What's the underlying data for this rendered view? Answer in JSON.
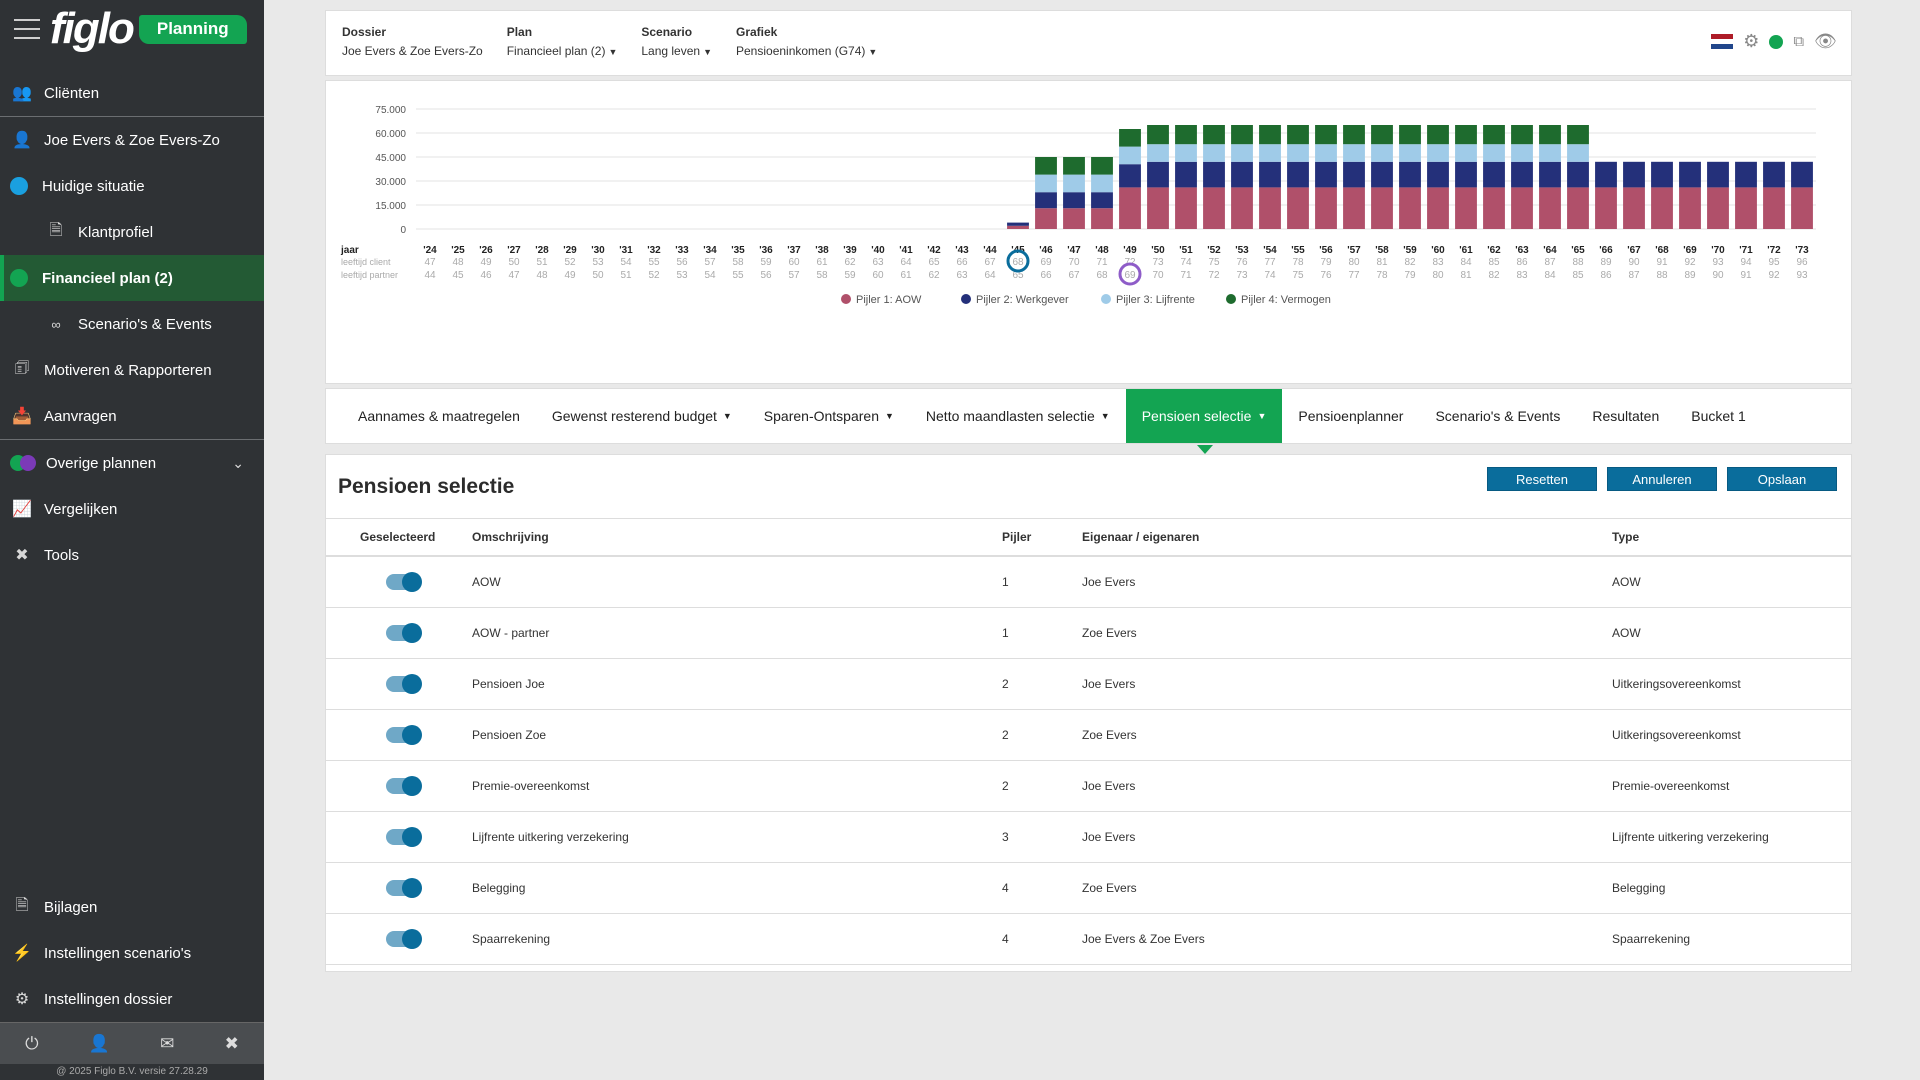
{
  "app": {
    "logo_text": "figlo",
    "badge": "Planning"
  },
  "sidebar": {
    "items": [
      {
        "label": "Cliënten",
        "icon": "users-icon"
      },
      {
        "label": "Joe Evers & Zoe Evers-Zo",
        "icon": "user-icon"
      },
      {
        "label": "Huidige situatie",
        "icon": "blue-dot"
      },
      {
        "label": "Klantprofiel",
        "icon": "document-icon"
      },
      {
        "label": "Financieel plan (2)",
        "icon": "green-dot"
      },
      {
        "label": "Scenario's & Events",
        "icon": "glasses-icon"
      },
      {
        "label": "Motiveren & Rapporteren",
        "icon": "report-icon"
      },
      {
        "label": "Aanvragen",
        "icon": "inbox-icon"
      },
      {
        "label": "Overige plannen",
        "icon": "multi-dot"
      },
      {
        "label": "Vergelijken",
        "icon": "chart-icon"
      },
      {
        "label": "Tools",
        "icon": "tools-icon"
      }
    ],
    "bottom_items": [
      {
        "label": "Bijlagen",
        "icon": "attachment-icon"
      },
      {
        "label": "Instellingen scenario's",
        "icon": "lightning-icon"
      },
      {
        "label": "Instellingen dossier",
        "icon": "gear-icon"
      }
    ],
    "copyright": "@ 2025 Figlo B.V. versie 27.28.29"
  },
  "header": {
    "dossier_label": "Dossier",
    "dossier_value": "Joe Evers & Zoe Evers-Zo",
    "plan_label": "Plan",
    "plan_value": "Financieel plan (2)",
    "scenario_label": "Scenario",
    "scenario_value": "Lang leven",
    "grafiek_label": "Grafiek",
    "grafiek_value": "Pensioeninkomen (G74)",
    "status_color": "#13a452"
  },
  "chart_data": {
    "type": "bar",
    "stacked": true,
    "ylim": [
      0,
      75000
    ],
    "yticks": [
      "0",
      "15.000",
      "30.000",
      "45.000",
      "60.000",
      "75.000"
    ],
    "categories": [
      "'24",
      "'25",
      "'26",
      "'27",
      "'28",
      "'29",
      "'30",
      "'31",
      "'32",
      "'33",
      "'34",
      "'35",
      "'36",
      "'37",
      "'38",
      "'39",
      "'40",
      "'41",
      "'42",
      "'43",
      "'44",
      "'45",
      "'46",
      "'47",
      "'48",
      "'49",
      "'50",
      "'51",
      "'52",
      "'53",
      "'54",
      "'55",
      "'56",
      "'57",
      "'58",
      "'59",
      "'60",
      "'61",
      "'62",
      "'63",
      "'64",
      "'65",
      "'66",
      "'67",
      "'68",
      "'69",
      "'70",
      "'71",
      "'72",
      "'73"
    ],
    "row_labels": {
      "year": "jaar",
      "client": "leeftijd client",
      "partner": "leeftijd partner"
    },
    "client_age_start": 47,
    "partner_age_start": 44,
    "client_marker": "'45",
    "partner_marker": "'49",
    "series": [
      {
        "name": "Pijler 1: AOW",
        "color": "#b0506a",
        "values": [
          0,
          0,
          0,
          0,
          0,
          0,
          0,
          0,
          0,
          0,
          0,
          0,
          0,
          0,
          0,
          0,
          0,
          0,
          0,
          0,
          0,
          2000,
          13000,
          13000,
          13000,
          26000,
          26000,
          26000,
          26000,
          26000,
          26000,
          26000,
          26000,
          26000,
          26000,
          26000,
          26000,
          26000,
          26000,
          26000,
          26000,
          26000,
          26000,
          26000,
          26000,
          26000,
          26000,
          26000,
          26000,
          26000
        ]
      },
      {
        "name": "Pijler 2: Werkgever",
        "color": "#24307a",
        "values": [
          0,
          0,
          0,
          0,
          0,
          0,
          0,
          0,
          0,
          0,
          0,
          0,
          0,
          0,
          0,
          0,
          0,
          0,
          0,
          0,
          0,
          2000,
          10000,
          10000,
          10000,
          14500,
          16000,
          16000,
          16000,
          16000,
          16000,
          16000,
          16000,
          16000,
          16000,
          16000,
          16000,
          16000,
          16000,
          16000,
          16000,
          16000,
          16000,
          16000,
          16000,
          16000,
          16000,
          16000,
          16000,
          16000
        ]
      },
      {
        "name": "Pijler 3: Lijfrente",
        "color": "#9fcbe8",
        "values": [
          0,
          0,
          0,
          0,
          0,
          0,
          0,
          0,
          0,
          0,
          0,
          0,
          0,
          0,
          0,
          0,
          0,
          0,
          0,
          0,
          0,
          0,
          11000,
          11000,
          11000,
          11000,
          11000,
          11000,
          11000,
          11000,
          11000,
          11000,
          11000,
          11000,
          11000,
          11000,
          11000,
          11000,
          11000,
          11000,
          11000,
          11000,
          0,
          0,
          0,
          0,
          0,
          0,
          0,
          0
        ]
      },
      {
        "name": "Pijler 4: Vermogen",
        "color": "#1e6b2e",
        "values": [
          0,
          0,
          0,
          0,
          0,
          0,
          0,
          0,
          0,
          0,
          0,
          0,
          0,
          0,
          0,
          0,
          0,
          0,
          0,
          0,
          0,
          0,
          11000,
          11000,
          11000,
          11000,
          12000,
          12000,
          12000,
          12000,
          12000,
          12000,
          12000,
          12000,
          12000,
          12000,
          12000,
          12000,
          12000,
          12000,
          12000,
          12000,
          0,
          0,
          0,
          0,
          0,
          0,
          0,
          0
        ]
      }
    ]
  },
  "tabs": [
    {
      "label": "Aannames & maatregelen",
      "dropdown": false
    },
    {
      "label": "Gewenst resterend budget",
      "dropdown": true
    },
    {
      "label": "Sparen-Ontsparen",
      "dropdown": true
    },
    {
      "label": "Netto maandlasten selectie",
      "dropdown": true
    },
    {
      "label": "Pensioen selectie",
      "dropdown": true,
      "active": true
    },
    {
      "label": "Pensioenplanner",
      "dropdown": false
    },
    {
      "label": "Scenario's & Events",
      "dropdown": false
    },
    {
      "label": "Resultaten",
      "dropdown": false
    },
    {
      "label": "Bucket 1",
      "dropdown": false
    }
  ],
  "selection": {
    "title": "Pensioen selectie",
    "buttons": {
      "reset": "Resetten",
      "cancel": "Annuleren",
      "save": "Opslaan"
    },
    "columns": [
      "Geselecteerd",
      "Omschrijving",
      "Pijler",
      "Eigenaar / eigenaren",
      "Type"
    ],
    "rows": [
      {
        "selected": true,
        "description": "AOW",
        "pillar": "1",
        "owner": "Joe Evers",
        "type": "AOW"
      },
      {
        "selected": true,
        "description": "AOW - partner",
        "pillar": "1",
        "owner": "Zoe Evers",
        "type": "AOW"
      },
      {
        "selected": true,
        "description": "Pensioen Joe",
        "pillar": "2",
        "owner": "Joe Evers",
        "type": "Uitkeringsovereenkomst"
      },
      {
        "selected": true,
        "description": "Pensioen Zoe",
        "pillar": "2",
        "owner": "Zoe Evers",
        "type": "Uitkeringsovereenkomst"
      },
      {
        "selected": true,
        "description": "Premie-overeenkomst",
        "pillar": "2",
        "owner": "Joe Evers",
        "type": "Premie-overeenkomst"
      },
      {
        "selected": true,
        "description": "Lijfrente uitkering verzekering",
        "pillar": "3",
        "owner": "Joe Evers",
        "type": "Lijfrente uitkering verzekering"
      },
      {
        "selected": true,
        "description": "Belegging",
        "pillar": "4",
        "owner": "Zoe Evers",
        "type": "Belegging"
      },
      {
        "selected": true,
        "description": "Spaarrekening",
        "pillar": "4",
        "owner": "Joe Evers & Zoe Evers",
        "type": "Spaarrekening"
      }
    ]
  }
}
